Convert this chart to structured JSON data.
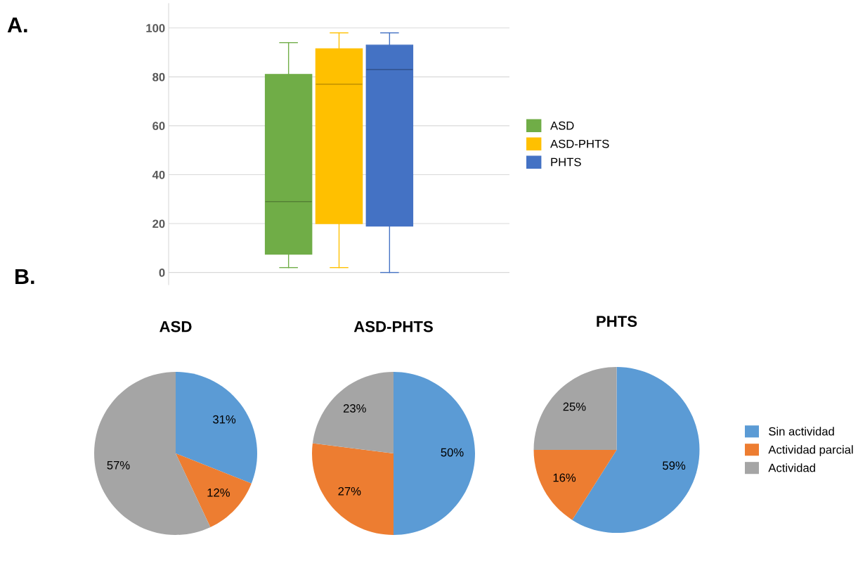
{
  "chart_data": [
    {
      "type": "box",
      "categories": [
        null
      ],
      "ylim": [
        -5,
        110
      ],
      "yticks": [
        0,
        20,
        40,
        60,
        80,
        100
      ],
      "grid": "y",
      "legend": "right",
      "annotations": [
        "A."
      ],
      "series": [
        {
          "name": "ASD",
          "color": "#70ad47",
          "boxes": [
            {
              "low": 2,
              "q1": 7.5,
              "median": 29,
              "q3": 81,
              "high": 94
            }
          ]
        },
        {
          "name": "ASD-PHTS",
          "color": "#ffc000",
          "boxes": [
            {
              "low": 2,
              "q1": 20,
              "median": 77,
              "q3": 91.5,
              "high": 98
            }
          ]
        },
        {
          "name": "PHTS",
          "color": "#4472c4",
          "boxes": [
            {
              "low": 0,
              "q1": 19,
              "median": 83,
              "q3": 93,
              "high": 98
            }
          ]
        }
      ]
    },
    {
      "type": "pie",
      "title": "ASD",
      "annotations": [
        "B."
      ],
      "categories": [
        "Sin actividad",
        "Actividad parcial",
        "Actividad"
      ],
      "values": [
        31,
        12,
        57
      ],
      "value_labels": [
        "31%",
        "12%",
        "57%"
      ],
      "colors": [
        "#5b9bd5",
        "#ed7d31",
        "#a5a5a5"
      ],
      "legend": "right"
    },
    {
      "type": "pie",
      "title": "ASD-PHTS",
      "categories": [
        null,
        null,
        null
      ],
      "values": [
        50,
        27,
        23
      ],
      "value_labels": [
        "50%",
        "27%",
        "23%"
      ],
      "colors": [
        "#5b9bd5",
        "#ed7d31",
        "#a5a5a5"
      ]
    },
    {
      "type": "pie",
      "title": "PHTS",
      "categories": [
        null,
        null,
        null
      ],
      "values": [
        59,
        16,
        25
      ],
      "value_labels": [
        "59%",
        "16%",
        "25%"
      ],
      "colors": [
        "#5b9bd5",
        "#ed7d31",
        "#a5a5a5"
      ]
    }
  ]
}
